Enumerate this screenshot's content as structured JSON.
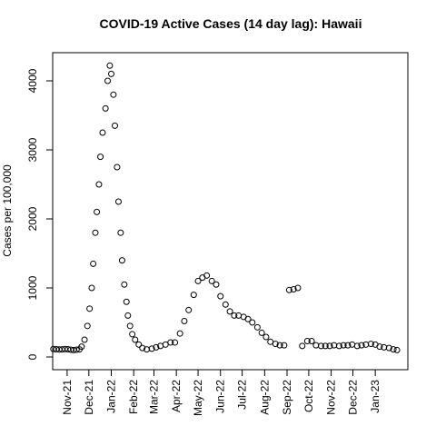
{
  "chart_data": {
    "type": "scatter",
    "title": "COVID-19 Active Cases (14 day lag): Hawaii",
    "y_label": "Cases per 100,000",
    "x": [
      12,
      16,
      20,
      24,
      28,
      32,
      36,
      40,
      44,
      48,
      51,
      55,
      59,
      62,
      65,
      67,
      70,
      72,
      75,
      77,
      80,
      84,
      87,
      90,
      92,
      95,
      97,
      100,
      102,
      105,
      107,
      110,
      113,
      115,
      118,
      121,
      125,
      130,
      135,
      141,
      148,
      154,
      160,
      167,
      174,
      180,
      187,
      193,
      199,
      206,
      212,
      218,
      224,
      231,
      237,
      243,
      250,
      256,
      262,
      268,
      275,
      281,
      287,
      294,
      300,
      306,
      312,
      319,
      325,
      331,
      338,
      344,
      350,
      356,
      363,
      369,
      375,
      382,
      388,
      394,
      400,
      407,
      413,
      419,
      425,
      432,
      438,
      444,
      451,
      457,
      463,
      469,
      476,
      482,
      487
    ],
    "values": [
      115,
      112,
      108,
      110,
      115,
      112,
      105,
      100,
      105,
      110,
      150,
      250,
      450,
      700,
      1000,
      1350,
      1800,
      2100,
      2500,
      2900,
      3250,
      3600,
      4000,
      4220,
      4100,
      3800,
      3350,
      2750,
      2250,
      1800,
      1400,
      1050,
      800,
      600,
      450,
      330,
      250,
      180,
      130,
      110,
      120,
      140,
      160,
      180,
      210,
      210,
      340,
      520,
      680,
      900,
      1100,
      1150,
      1180,
      1100,
      1050,
      880,
      760,
      660,
      600,
      600,
      580,
      550,
      500,
      430,
      350,
      290,
      220,
      190,
      170,
      170,
      970,
      980,
      1000,
      160,
      230,
      230,
      170,
      160,
      160,
      160,
      170,
      160,
      170,
      170,
      180,
      160,
      170,
      180,
      190,
      180,
      150,
      140,
      130,
      110,
      100
    ],
    "color": "#000000",
    "xlim": [
      11,
      502
    ],
    "xticks": [
      {
        "value": 31,
        "label": "Nov-21"
      },
      {
        "value": 61,
        "label": "Dec-21"
      },
      {
        "value": 92,
        "label": "Jan-22"
      },
      {
        "value": 123,
        "label": "Feb-22"
      },
      {
        "value": 151,
        "label": "Mar-22"
      },
      {
        "value": 182,
        "label": "Apr-22"
      },
      {
        "value": 212,
        "label": "May-22"
      },
      {
        "value": 243,
        "label": "Jun-22"
      },
      {
        "value": 273,
        "label": "Jul-22"
      },
      {
        "value": 304,
        "label": "Aug-22"
      },
      {
        "value": 335,
        "label": "Sep-22"
      },
      {
        "value": 365,
        "label": "Oct-22"
      },
      {
        "value": 396,
        "label": "Nov-22"
      },
      {
        "value": 426,
        "label": "Dec-22"
      },
      {
        "value": 457,
        "label": "Jan-23"
      }
    ],
    "ylim": [
      -184,
      4408
    ],
    "yticks": [
      0,
      1000,
      2000,
      3000,
      4000
    ]
  }
}
